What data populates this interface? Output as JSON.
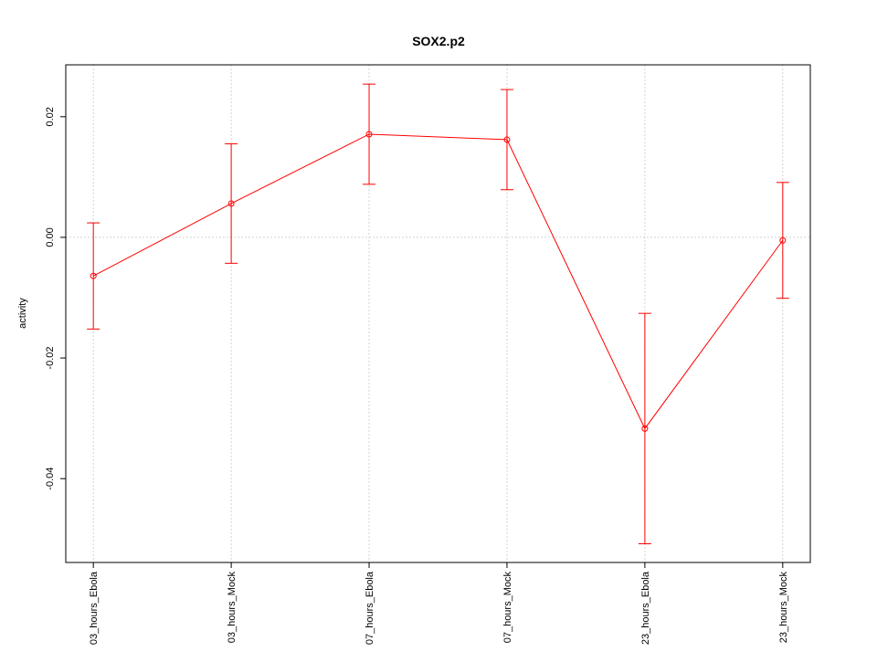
{
  "chart_data": {
    "type": "line",
    "title": "SOX2.p2",
    "y_label": "activity",
    "categories": [
      "03_hours_Ebola",
      "03_hours_Mock",
      "07_hours_Ebola",
      "07_hours_Mock",
      "23_hours_Ebola",
      "23_hours_Mock"
    ],
    "series": [
      {
        "color": "#ff0000",
        "values": [
          -0.0064,
          0.0056,
          0.0171,
          0.0162,
          -0.0317,
          -0.0005
        ],
        "errors": [
          0.0088,
          0.0099,
          0.0083,
          0.0083,
          0.0191,
          0.0096
        ]
      }
    ],
    "ylim": [
      -0.0539,
      0.0286
    ],
    "yticks": [
      -0.04,
      -0.02,
      {
        "value": 0,
        "label": "0.00"
      },
      0.02
    ],
    "hline": 0,
    "grid": true
  }
}
